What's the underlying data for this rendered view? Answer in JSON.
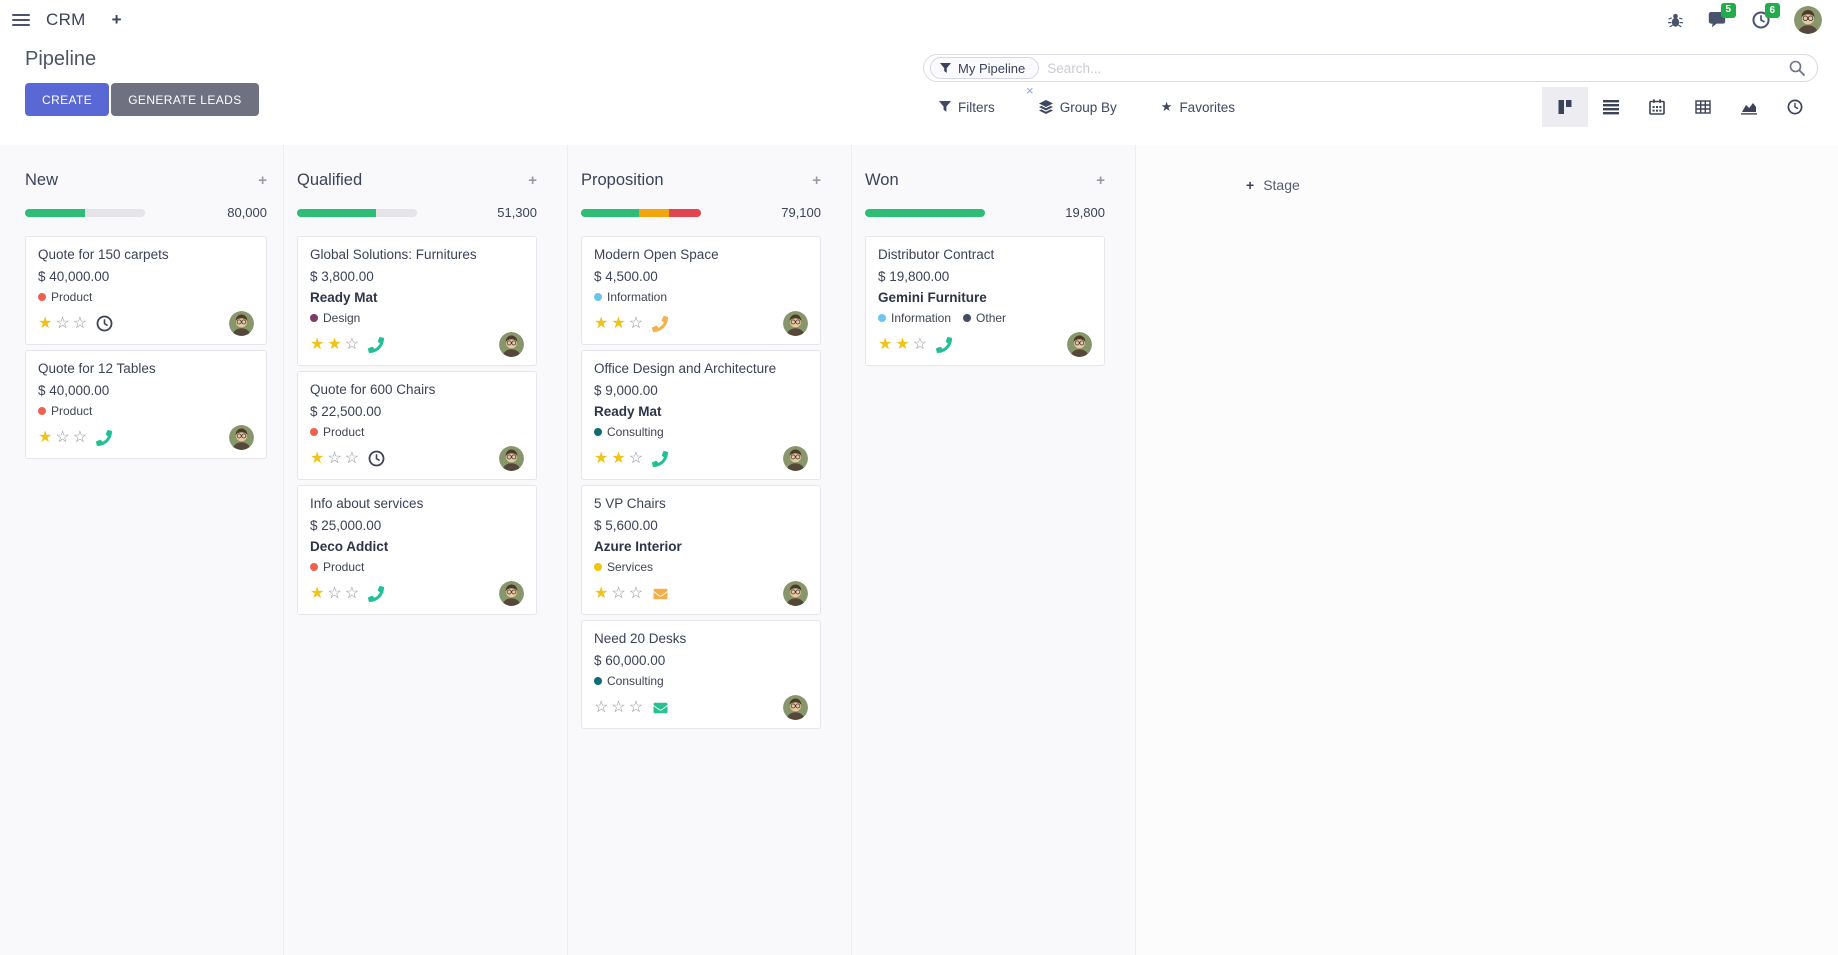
{
  "navbar": {
    "app_label": "CRM",
    "new_window_label": "+",
    "messages_badge": "5",
    "activities_badge": "6"
  },
  "control_panel": {
    "title": "Pipeline",
    "create_label": "CREATE",
    "generate_leads_label": "GENERATE LEADS",
    "search": {
      "facet_label": "My Pipeline",
      "facet_remove_glyph": "×",
      "placeholder": "Search..."
    },
    "filters_label": "Filters",
    "group_by_label": "Group By",
    "favorites_label": "Favorites",
    "view_switcher": [
      "kanban",
      "list",
      "calendar",
      "pivot",
      "graph",
      "activity"
    ],
    "active_view": "kanban"
  },
  "kanban": {
    "add_card_label": "+",
    "add_stage_plus": "+",
    "add_stage_label": "Stage",
    "star_filled_glyph": "★",
    "star_empty_glyph": "☆",
    "stages": [
      {
        "name": "New",
        "total": "80,000",
        "progress": [
          {
            "name": "success",
            "color": "#2ebd74",
            "pct": 50
          }
        ],
        "cards": [
          {
            "title": "Quote for 150 carpets",
            "amount": "$ 40,000.00",
            "partner": "",
            "tags": [
              {
                "label": "Product",
                "color": "#f06050"
              }
            ],
            "stars": 1,
            "activity": {
              "type": "clock",
              "color": "#3e4357"
            }
          },
          {
            "title": "Quote for 12 Tables",
            "amount": "$ 40,000.00",
            "partner": "",
            "tags": [
              {
                "label": "Product",
                "color": "#f06050"
              }
            ],
            "stars": 1,
            "activity": {
              "type": "phone",
              "color": "#22c096"
            }
          }
        ]
      },
      {
        "name": "Qualified",
        "total": "51,300",
        "progress": [
          {
            "name": "success",
            "color": "#2ebd74",
            "pct": 66
          }
        ],
        "cards": [
          {
            "title": "Global Solutions: Furnitures",
            "amount": "$ 3,800.00",
            "partner": "Ready Mat",
            "tags": [
              {
                "label": "Design",
                "color": "#7d3c63"
              }
            ],
            "stars": 2,
            "activity": {
              "type": "phone",
              "color": "#22c096"
            }
          },
          {
            "title": "Quote for 600 Chairs",
            "amount": "$ 22,500.00",
            "partner": "",
            "tags": [
              {
                "label": "Product",
                "color": "#f06050"
              }
            ],
            "stars": 1,
            "activity": {
              "type": "clock",
              "color": "#3e4357"
            }
          },
          {
            "title": "Info about services",
            "amount": "$ 25,000.00",
            "partner": "Deco Addict",
            "tags": [
              {
                "label": "Product",
                "color": "#f06050"
              }
            ],
            "stars": 1,
            "activity": {
              "type": "phone",
              "color": "#22c096"
            }
          }
        ]
      },
      {
        "name": "Proposition",
        "total": "79,100",
        "progress": [
          {
            "name": "success",
            "color": "#2ebd74",
            "pct": 48
          },
          {
            "name": "warning",
            "color": "#f2a60d",
            "pct": 25
          },
          {
            "name": "danger",
            "color": "#e2454f",
            "pct": 27
          }
        ],
        "cards": [
          {
            "title": "Modern Open Space",
            "amount": "$ 4,500.00",
            "partner": "",
            "tags": [
              {
                "label": "Information",
                "color": "#6dc4ef"
              }
            ],
            "stars": 2,
            "activity": {
              "type": "phone",
              "color": "#f2b14e"
            }
          },
          {
            "title": "Office Design and Architecture",
            "amount": "$ 9,000.00",
            "partner": "Ready Mat",
            "tags": [
              {
                "label": "Consulting",
                "color": "#0e6d74"
              }
            ],
            "stars": 2,
            "activity": {
              "type": "phone",
              "color": "#22c096"
            }
          },
          {
            "title": "5 VP Chairs",
            "amount": "$ 5,600.00",
            "partner": "Azure Interior",
            "tags": [
              {
                "label": "Services",
                "color": "#f2c40c"
              }
            ],
            "stars": 1,
            "activity": {
              "type": "envelope",
              "color": "#f2b04c"
            }
          },
          {
            "title": "Need 20 Desks",
            "amount": "$ 60,000.00",
            "partner": "",
            "tags": [
              {
                "label": "Consulting",
                "color": "#0e6d74"
              }
            ],
            "stars": 0,
            "activity": {
              "type": "envelope",
              "color": "#2ac192"
            }
          }
        ]
      },
      {
        "name": "Won",
        "total": "19,800",
        "progress": [
          {
            "name": "success",
            "color": "#2ebd74",
            "pct": 100
          }
        ],
        "cards": [
          {
            "title": "Distributor Contract",
            "amount": "$ 19,800.00",
            "partner": "Gemini Furniture",
            "tags": [
              {
                "label": "Information",
                "color": "#6dc4ef"
              },
              {
                "label": "Other",
                "color": "#454c66"
              }
            ],
            "stars": 2,
            "activity": {
              "type": "phone",
              "color": "#22c096"
            }
          }
        ]
      }
    ]
  }
}
